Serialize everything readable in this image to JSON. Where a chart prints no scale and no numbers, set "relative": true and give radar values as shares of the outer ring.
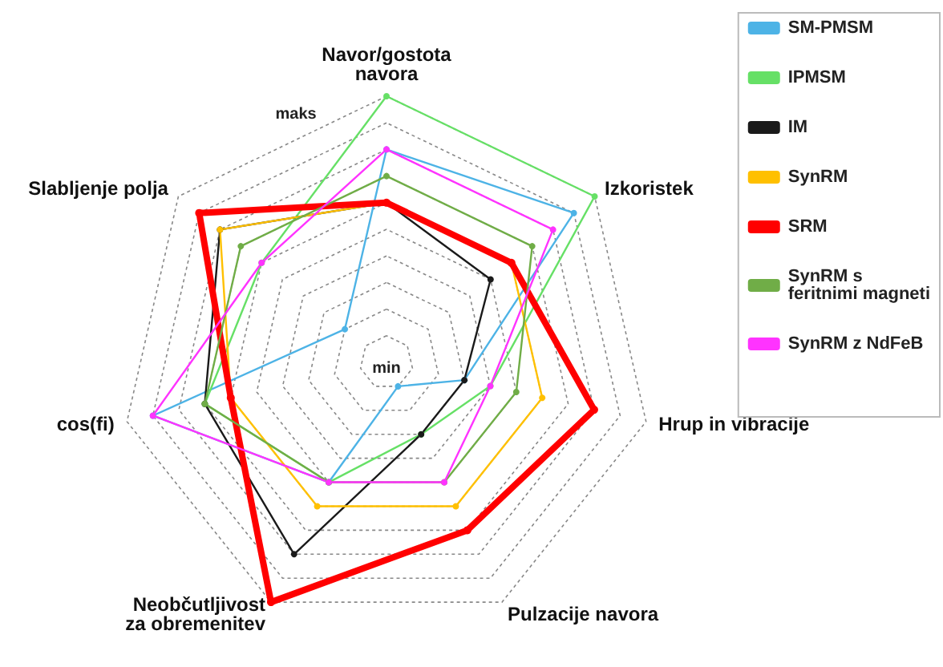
{
  "chart_data": {
    "type": "radar",
    "relative": true,
    "categories": [
      "Navor/gostota navora",
      "Izkoristek",
      "Hrup in vibracije",
      "Pulzacije navora",
      "Neobčutljivost za obremenitev",
      "cos(fi)",
      "Slabljenje polja"
    ],
    "annotations": [
      "maks",
      "min"
    ],
    "legend": "right",
    "marker": "circle",
    "grid": true,
    "series": [
      {
        "name": "SM-PMSM",
        "color": "#4db3e6",
        "values": [
          0.8,
          0.9,
          0.3,
          0.1,
          0.5,
          0.9,
          0.2
        ]
      },
      {
        "name": "IPMSM",
        "color": "#66e066",
        "values": [
          1.0,
          1.0,
          0.4,
          0.3,
          0.5,
          0.7,
          0.6
        ]
      },
      {
        "name": "IM",
        "color": "#1a1a1a",
        "values": [
          0.6,
          0.5,
          0.3,
          0.3,
          0.8,
          0.7,
          0.8
        ]
      },
      {
        "name": "SynRM",
        "color": "#ffc000",
        "values": [
          0.6,
          0.6,
          0.6,
          0.6,
          0.6,
          0.6,
          0.8
        ]
      },
      {
        "name": "SRM",
        "color": "#ff0000",
        "values": [
          0.6,
          0.6,
          0.8,
          0.7,
          1.0,
          0.6,
          0.9
        ]
      },
      {
        "name": "SynRM s feritnimi magneti",
        "color": "#70ad47",
        "values": [
          0.7,
          0.7,
          0.5,
          0.5,
          0.5,
          0.7,
          0.7
        ]
      },
      {
        "name": "SynRM z NdFeB",
        "color": "#ff33ff",
        "values": [
          0.8,
          0.8,
          0.4,
          0.5,
          0.5,
          0.9,
          0.6
        ]
      }
    ]
  }
}
